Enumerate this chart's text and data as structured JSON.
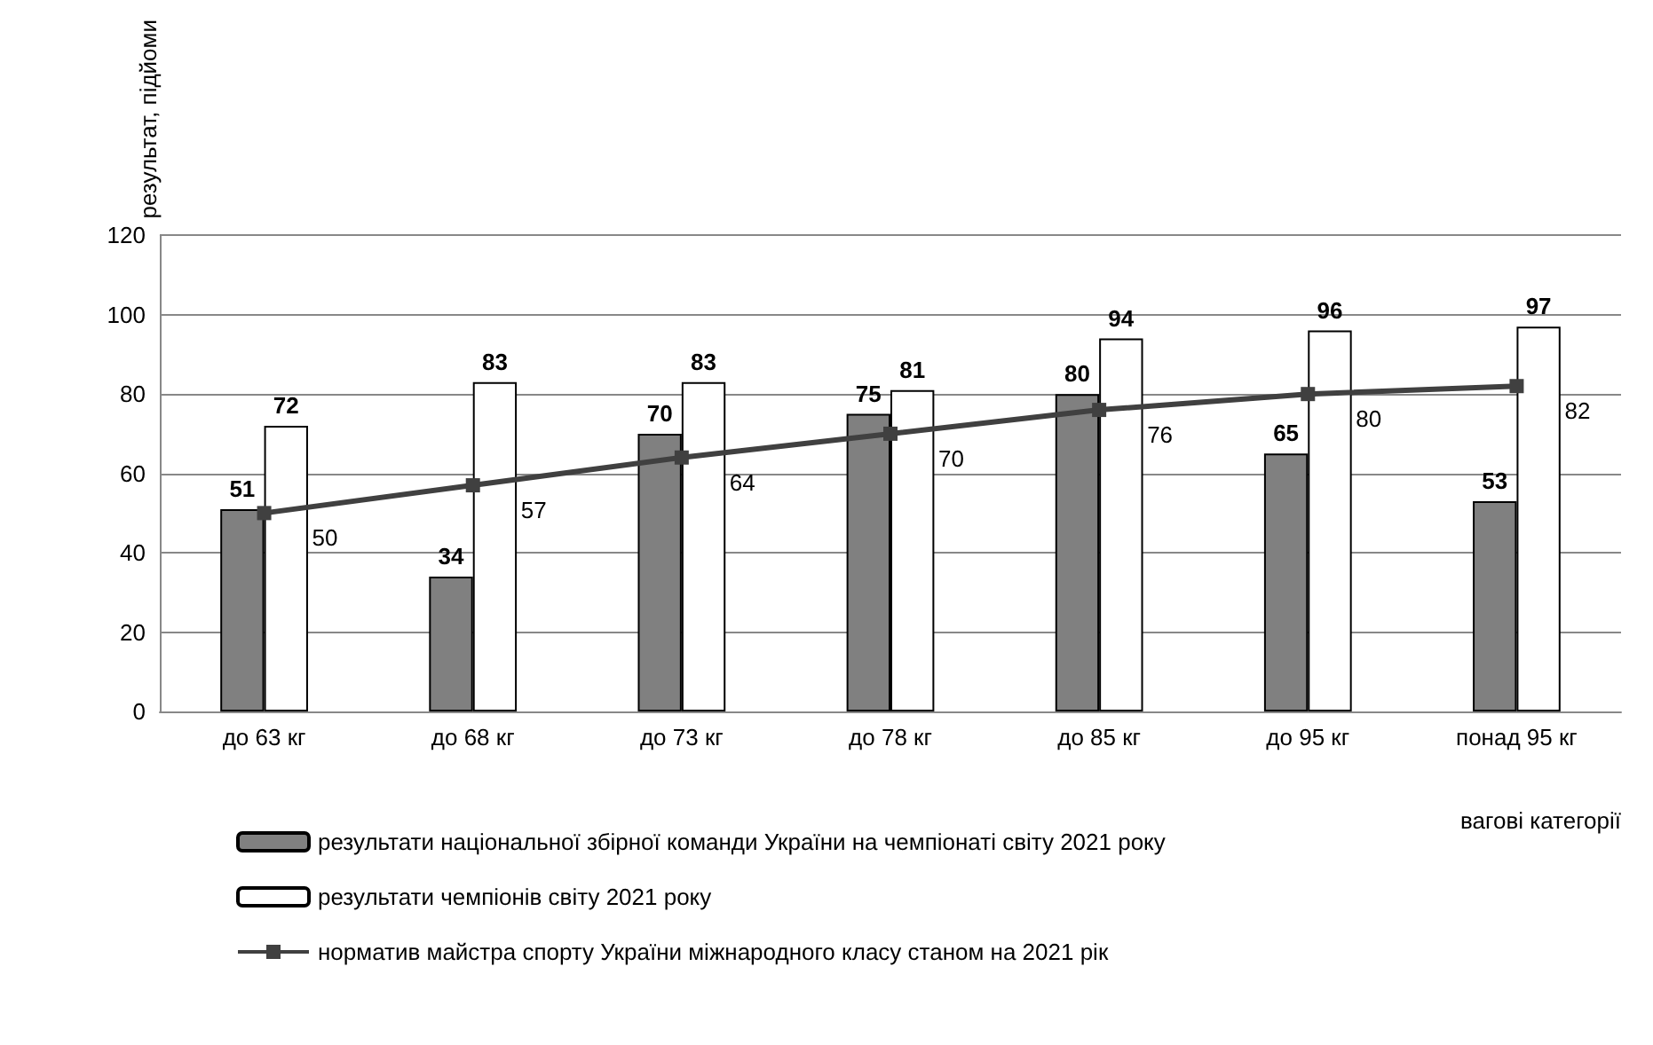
{
  "chart_data": {
    "type": "bar",
    "xlabel": "вагові категорії",
    "ylabel": "результат, підйоми",
    "categories": [
      "до 63 кг",
      "до 68 кг",
      "до 73 кг",
      "до 78 кг",
      "до 85 кг",
      "до 95 кг",
      "понад 95 кг"
    ],
    "series": [
      {
        "name": "результати національної збірної команди України на чемпіонаті світу 2021 року",
        "color": "#808080",
        "values": [
          51,
          34,
          70,
          75,
          80,
          65,
          53
        ]
      },
      {
        "name": "результати чемпіонів світу 2021 року",
        "color": "#ffffff",
        "values": [
          72,
          83,
          83,
          81,
          94,
          96,
          97
        ]
      },
      {
        "name": "норматив майстра спорту України міжнародного класу станом на 2021 рік",
        "type": "line",
        "color": "#404040",
        "marker": "square",
        "values": [
          50,
          57,
          64,
          70,
          76,
          80,
          82
        ]
      }
    ],
    "ylim": [
      0,
      120
    ],
    "yticks": [
      0,
      20,
      40,
      60,
      80,
      100,
      120
    ],
    "grid": "y",
    "legend": "bottom",
    "data_labels": true
  }
}
